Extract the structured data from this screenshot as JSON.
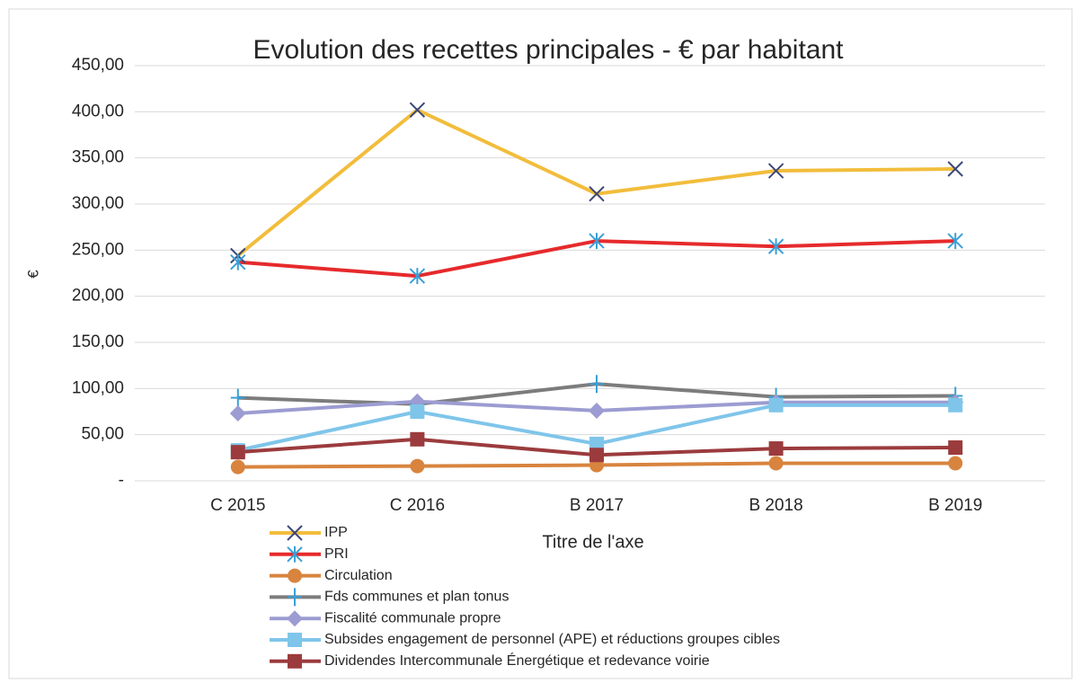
{
  "chart_data": {
    "type": "line",
    "title": "Evolution des recettes principales - € par habitant",
    "y_label": "€",
    "x_label": "Titre de l'axe",
    "categories": [
      "C 2015",
      "C 2016",
      "B 2017",
      "B 2018",
      "B 2019"
    ],
    "ylim": [
      0,
      450
    ],
    "yticks": [
      {
        "value": 0,
        "label": "-"
      },
      {
        "value": 50,
        "label": "50,00"
      },
      {
        "value": 100,
        "label": "100,00"
      },
      {
        "value": 150,
        "label": "150,00"
      },
      {
        "value": 200,
        "label": "200,00"
      },
      {
        "value": 250,
        "label": "250,00"
      },
      {
        "value": 300,
        "label": "300,00"
      },
      {
        "value": 350,
        "label": "350,00"
      },
      {
        "value": 400,
        "label": "400,00"
      },
      {
        "value": 450,
        "label": "450,00"
      }
    ],
    "grid": true,
    "legend": "bottom",
    "series": [
      {
        "name": "IPP",
        "color": "#f2bd3c",
        "marker": "x",
        "marker_color": "#3d4878",
        "values": [
          244,
          402,
          311,
          336,
          338
        ]
      },
      {
        "name": "PRI",
        "color": "#e62a2c",
        "marker": "asterisk",
        "marker_color": "#3a9fd6",
        "values": [
          237,
          222,
          260,
          254,
          260
        ]
      },
      {
        "name": "Circulation",
        "color": "#d8843e",
        "marker": "circle",
        "marker_color": "#d8843e",
        "values": [
          15,
          16,
          17,
          19,
          19
        ]
      },
      {
        "name": "Fds communes et plan tonus",
        "color": "#7c7c7c",
        "marker": "plus",
        "marker_color": "#3a9fd6",
        "values": [
          90,
          83,
          105,
          91,
          92
        ]
      },
      {
        "name": "Fiscalité communale propre",
        "color": "#9c9cd2",
        "marker": "diamond",
        "marker_color": "#9c9cd2",
        "values": [
          73,
          86,
          76,
          85,
          85
        ]
      },
      {
        "name": "Subsides engagement de personnel (APE) et réductions groupes cibles",
        "color": "#7fc5ea",
        "marker": "square",
        "marker_color": "#7fc5ea",
        "values": [
          33,
          75,
          40,
          82,
          82
        ]
      },
      {
        "name": "Dividendes Intercommunale Énergétique et redevance voirie",
        "color": "#9b3b3d",
        "marker": "square",
        "marker_color": "#9b3b3d",
        "values": [
          31,
          45,
          28,
          35,
          36
        ]
      }
    ]
  }
}
